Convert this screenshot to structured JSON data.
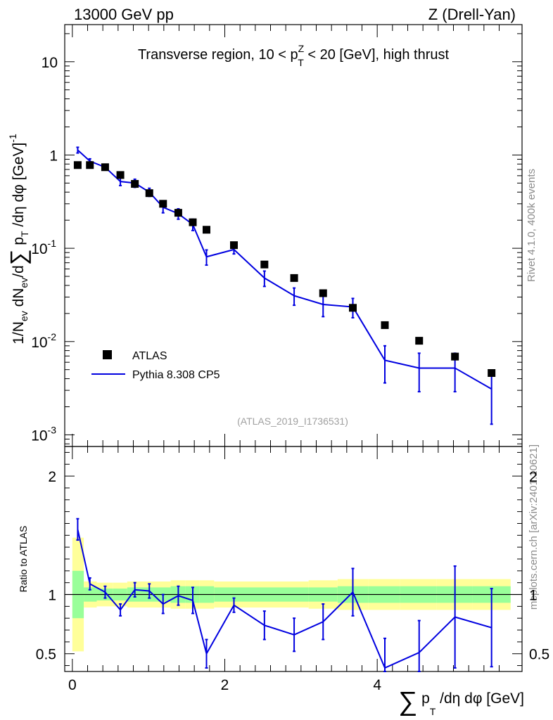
{
  "header": {
    "left": "13000 GeV pp",
    "right": "Z (Drell-Yan)"
  },
  "side": {
    "rivet": "Rivet 4.1.0,  400k events",
    "site": "mcplots.cern.ch [arXiv:2401.10621]"
  },
  "chart_data": [
    {
      "type": "scatter",
      "panel": "main",
      "title": "Transverse region, 10 < p_T^Z < 20 [GeV], high thrust",
      "ylabel": "1/N_ev dN_ev/d∑p_T/dη dφ [GeV]^-1",
      "yscale": "log",
      "ylim": [
        0.00075,
        25
      ],
      "xlim": [
        -0.1,
        5.9
      ],
      "watermark": "(ATLAS_2019_I1736531)",
      "legend": [
        "ATLAS",
        "Pythia 8.308 CP5"
      ],
      "legend_position": "bottom-left",
      "series": [
        {
          "name": "ATLAS",
          "marker": "square",
          "color": "#000000",
          "x": [
            0.07,
            0.23,
            0.43,
            0.63,
            0.82,
            1.01,
            1.19,
            1.39,
            1.58,
            1.76,
            2.12,
            2.52,
            2.91,
            3.29,
            3.68,
            4.1,
            4.55,
            5.02,
            5.5
          ],
          "y": [
            0.78,
            0.78,
            0.74,
            0.61,
            0.49,
            0.39,
            0.3,
            0.24,
            0.19,
            0.158,
            0.108,
            0.067,
            0.048,
            0.033,
            0.023,
            0.015,
            0.0102,
            0.0069,
            0.0046
          ]
        },
        {
          "name": "Pythia 8.308 CP5",
          "marker": "line",
          "color": "#0000e0",
          "x": [
            0.07,
            0.23,
            0.43,
            0.63,
            0.82,
            1.01,
            1.19,
            1.39,
            1.58,
            1.76,
            2.12,
            2.52,
            2.91,
            3.29,
            3.68,
            4.1,
            4.55,
            5.02,
            5.5
          ],
          "y": [
            1.13,
            0.86,
            0.74,
            0.52,
            0.5,
            0.4,
            0.275,
            0.235,
            0.18,
            0.081,
            0.097,
            0.048,
            0.031,
            0.025,
            0.0235,
            0.0063,
            0.0052,
            0.0052,
            0.0031
          ],
          "yerr": [
            0.08,
            0.05,
            0.04,
            0.05,
            0.05,
            0.04,
            0.035,
            0.03,
            0.025,
            0.015,
            0.01,
            0.009,
            0.0065,
            0.0065,
            0.0055,
            0.0027,
            0.0023,
            0.0023,
            0.0018
          ]
        }
      ],
      "ticks": [
        {
          "v": 0.001,
          "mant": "10",
          "exp": "-3"
        },
        {
          "v": 0.01,
          "mant": "10",
          "exp": "-2"
        },
        {
          "v": 0.1,
          "mant": "10",
          "exp": "-1"
        },
        {
          "v": 1,
          "mant": "1",
          "exp": ""
        },
        {
          "v": 10,
          "mant": "10",
          "exp": ""
        }
      ]
    },
    {
      "type": "line",
      "panel": "ratio",
      "ylabel": "Ratio to ATLAS",
      "xlabel": "∑p_T/dη dφ [GeV]",
      "ylim": [
        0.35,
        2.25
      ],
      "xlim": [
        -0.1,
        5.9
      ],
      "xticks": [
        "0",
        "2",
        "4"
      ],
      "yticks": [
        "0.5",
        "1",
        "2"
      ],
      "reference": 1,
      "bands": {
        "x_edges": [
          0.0,
          0.15,
          0.32,
          0.53,
          0.72,
          0.92,
          1.1,
          1.29,
          1.48,
          1.67,
          1.86,
          2.3,
          2.72,
          3.1,
          3.48,
          3.88,
          4.3,
          4.78,
          5.25,
          5.75
        ],
        "green_half": [
          0.2,
          0.06,
          0.05,
          0.05,
          0.06,
          0.06,
          0.06,
          0.07,
          0.07,
          0.07,
          0.06,
          0.06,
          0.06,
          0.06,
          0.07,
          0.07,
          0.07,
          0.07,
          0.07
        ],
        "yellow_half": [
          0.48,
          0.11,
          0.1,
          0.1,
          0.11,
          0.11,
          0.11,
          0.12,
          0.12,
          0.12,
          0.11,
          0.11,
          0.11,
          0.12,
          0.13,
          0.13,
          0.13,
          0.13,
          0.13
        ]
      },
      "series": [
        {
          "name": "Pythia 8.308 CP5 / ATLAS",
          "color": "#0000e0",
          "x": [
            0.07,
            0.23,
            0.43,
            0.63,
            0.82,
            1.01,
            1.19,
            1.39,
            1.58,
            1.76,
            2.12,
            2.52,
            2.91,
            3.29,
            3.68,
            4.1,
            4.55,
            5.02,
            5.5
          ],
          "y": [
            1.55,
            1.09,
            1.02,
            0.87,
            1.04,
            1.03,
            0.92,
            0.99,
            0.95,
            0.5,
            0.91,
            0.74,
            0.66,
            0.77,
            1.02,
            0.38,
            0.51,
            0.81,
            0.72
          ],
          "yerr": [
            0.09,
            0.05,
            0.05,
            0.05,
            0.06,
            0.06,
            0.08,
            0.08,
            0.11,
            0.12,
            0.06,
            0.12,
            0.14,
            0.15,
            0.2,
            0.25,
            0.27,
            0.43,
            0.33
          ]
        }
      ]
    }
  ]
}
